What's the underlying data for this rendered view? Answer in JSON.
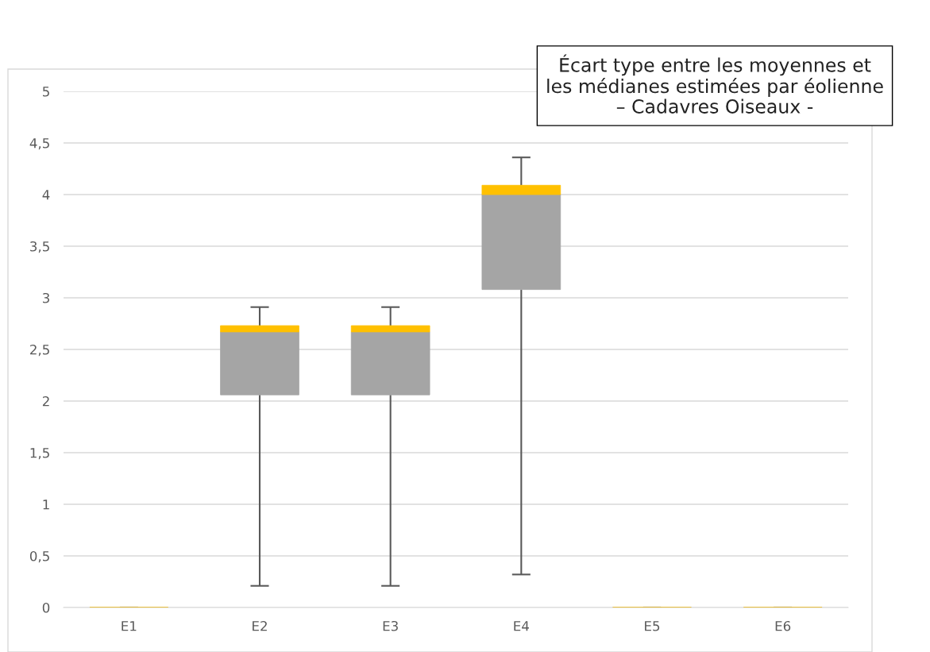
{
  "chart_data": {
    "type": "box",
    "title": "Écart type entre les moyennes et\nles médianes estimées par éolienne\n– Cadavres Oiseaux -",
    "categories": [
      "E1",
      "E2",
      "E3",
      "E4",
      "E5",
      "E6"
    ],
    "series": [
      {
        "color": "#ffc000",
        "colors": [
          "#a5a5a5",
          "#a5a5a5",
          "#a5a5a5",
          "#a5a5a5",
          "#a5a5a5",
          "#a5a5a5"
        ],
        "boxes": [
          {
            "low": 0,
            "q1": 0,
            "median": 0,
            "q3": 0,
            "high": 0
          },
          {
            "low": 0.21,
            "q1": 2.06,
            "median": 2.67,
            "q3": 2.73,
            "high": 2.91
          },
          {
            "low": 0.21,
            "q1": 2.06,
            "median": 2.67,
            "q3": 2.73,
            "high": 2.91
          },
          {
            "low": 0.32,
            "q1": 3.08,
            "median": 4.0,
            "q3": 4.09,
            "high": 4.36
          },
          {
            "low": 0,
            "q1": 0,
            "median": 0,
            "q3": 0,
            "high": 0
          },
          {
            "low": 0,
            "q1": 0,
            "median": 0,
            "q3": 0,
            "high": 0
          }
        ]
      }
    ],
    "ylim": [
      0,
      5
    ],
    "yticks": [
      {
        "value": 0,
        "label": "0"
      },
      {
        "value": 0.5,
        "label": "0,5"
      },
      {
        "value": 1,
        "label": "1"
      },
      {
        "value": 1.5,
        "label": "1,5"
      },
      {
        "value": 2,
        "label": "2"
      },
      {
        "value": 2.5,
        "label": "2,5"
      },
      {
        "value": 3,
        "label": "3"
      },
      {
        "value": 3.5,
        "label": "3,5"
      },
      {
        "value": 4,
        "label": "4"
      },
      {
        "value": 4.5,
        "label": "4,5"
      },
      {
        "value": 5,
        "label": "5"
      }
    ],
    "grid": "y"
  }
}
